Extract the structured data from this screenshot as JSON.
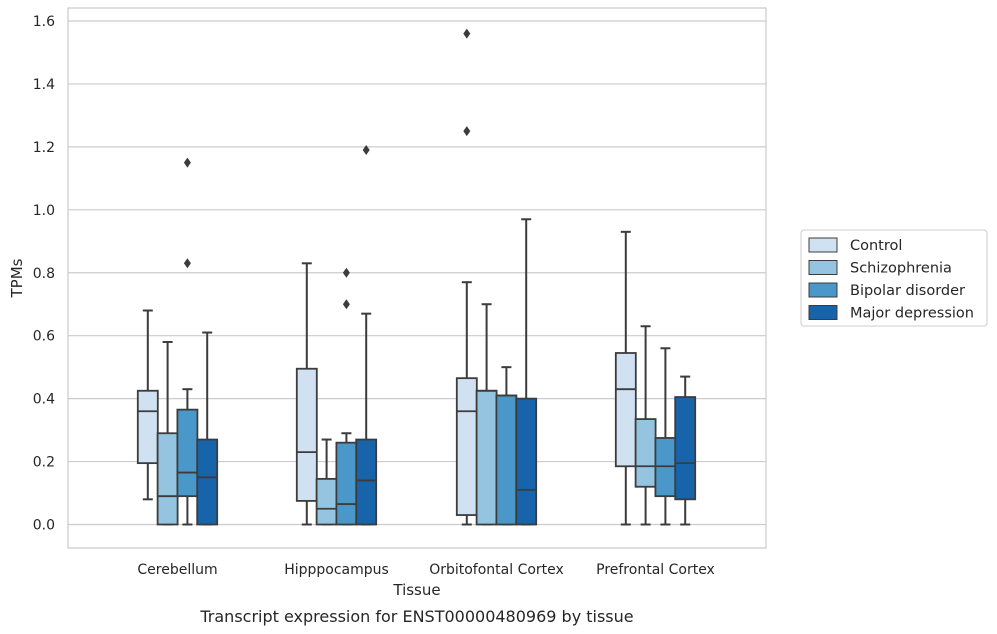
{
  "chart_data": {
    "type": "boxplot",
    "caption": "Transcript expression for ENST00000480969 by tissue",
    "xlabel": "Tissue",
    "ylabel": "TPMs",
    "ylim": [
      -0.075,
      1.64
    ],
    "yticks": [
      0.0,
      0.2,
      0.4,
      0.6,
      0.8,
      1.0,
      1.2,
      1.4,
      1.6
    ],
    "ytick_labels": [
      "0.0",
      "0.2",
      "0.4",
      "0.6",
      "0.8",
      "1.0",
      "1.2",
      "1.4",
      "1.6"
    ],
    "grid": "horizontal",
    "legend_position": "right",
    "categories": [
      "Cerebellum",
      "Hipppocampus",
      "Orbitofontal Cortex",
      "Prefrontal Cortex"
    ],
    "series": [
      {
        "name": "Control",
        "color": "#d0e1f2",
        "boxes": [
          {
            "whislo": 0.08,
            "q1": 0.195,
            "med": 0.36,
            "q3": 0.425,
            "whishi": 0.68,
            "fliers": []
          },
          {
            "whislo": 0.0,
            "q1": 0.075,
            "med": 0.23,
            "q3": 0.495,
            "whishi": 0.83,
            "fliers": []
          },
          {
            "whislo": 0.0,
            "q1": 0.03,
            "med": 0.36,
            "q3": 0.465,
            "whishi": 0.77,
            "fliers": [
              1.56,
              1.25
            ]
          },
          {
            "whislo": 0.0,
            "q1": 0.185,
            "med": 0.43,
            "q3": 0.545,
            "whishi": 0.93,
            "fliers": []
          }
        ]
      },
      {
        "name": "Schizophrenia",
        "color": "#94c4df",
        "boxes": [
          {
            "whislo": 0.0,
            "q1": 0.0,
            "med": 0.09,
            "q3": 0.29,
            "whishi": 0.58,
            "fliers": []
          },
          {
            "whislo": 0.0,
            "q1": 0.0,
            "med": 0.05,
            "q3": 0.145,
            "whishi": 0.27,
            "fliers": []
          },
          {
            "whislo": 0.0,
            "q1": 0.0,
            "med": 0.425,
            "q3": 0.425,
            "whishi": 0.7,
            "fliers": []
          },
          {
            "whislo": 0.0,
            "q1": 0.12,
            "med": 0.185,
            "q3": 0.335,
            "whishi": 0.63,
            "fliers": []
          }
        ]
      },
      {
        "name": "Bipolar disorder",
        "color": "#4a98c9",
        "boxes": [
          {
            "whislo": 0.0,
            "q1": 0.09,
            "med": 0.165,
            "q3": 0.365,
            "whishi": 0.43,
            "fliers": [
              1.15,
              0.83
            ]
          },
          {
            "whislo": 0.0,
            "q1": 0.0,
            "med": 0.065,
            "q3": 0.26,
            "whishi": 0.29,
            "fliers": [
              0.8,
              0.7
            ]
          },
          {
            "whislo": 0.0,
            "q1": 0.0,
            "med": 0.41,
            "q3": 0.41,
            "whishi": 0.5,
            "fliers": []
          },
          {
            "whislo": 0.0,
            "q1": 0.09,
            "med": 0.185,
            "q3": 0.275,
            "whishi": 0.56,
            "fliers": []
          }
        ]
      },
      {
        "name": "Major depression",
        "color": "#1764ab",
        "boxes": [
          {
            "whislo": 0.0,
            "q1": 0.0,
            "med": 0.15,
            "q3": 0.27,
            "whishi": 0.61,
            "fliers": []
          },
          {
            "whislo": 0.0,
            "q1": 0.0,
            "med": 0.14,
            "q3": 0.27,
            "whishi": 0.67,
            "fliers": [
              1.19
            ]
          },
          {
            "whislo": 0.0,
            "q1": 0.0,
            "med": 0.11,
            "q3": 0.4,
            "whishi": 0.97,
            "fliers": []
          },
          {
            "whislo": 0.0,
            "q1": 0.08,
            "med": 0.195,
            "q3": 0.405,
            "whishi": 0.47,
            "fliers": []
          }
        ]
      }
    ]
  }
}
